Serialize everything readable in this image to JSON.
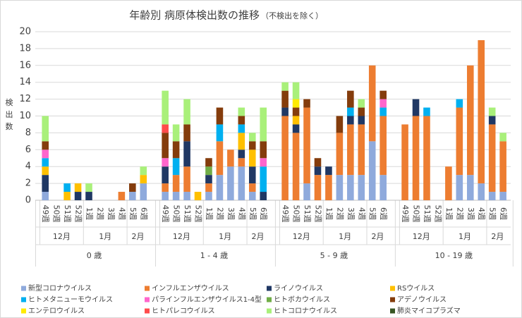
{
  "chart_data": {
    "type": "bar",
    "stacked": true,
    "title": "年齢別 病原体検出数の推移",
    "subtitle": "（不検出を除く）",
    "y_label": "検出数",
    "groups": [
      {
        "label": "0 歳",
        "months": [
          {
            "label": "12月",
            "weeks": [
              "49週",
              "50週",
              "51週",
              "52週"
            ]
          },
          {
            "label": "1月",
            "weeks": [
              "1週",
              "2週",
              "3週",
              "4週"
            ]
          },
          {
            "label": "2月",
            "weeks": [
              "5週",
              "6週"
            ]
          }
        ]
      },
      {
        "label": "1 - 4 歳",
        "months": [
          {
            "label": "12月",
            "weeks": [
              "49週",
              "50週",
              "51週",
              "52週"
            ]
          },
          {
            "label": "1月",
            "weeks": [
              "1週",
              "2週",
              "3週",
              "4週"
            ]
          },
          {
            "label": "2月",
            "weeks": [
              "5週",
              "6週"
            ]
          }
        ]
      },
      {
        "label": "5 - 9 歳",
        "months": [
          {
            "label": "12月",
            "weeks": [
              "49週",
              "50週",
              "51週",
              "52週"
            ]
          },
          {
            "label": "1月",
            "weeks": [
              "1週",
              "2週",
              "3週",
              "4週"
            ]
          },
          {
            "label": "2月",
            "weeks": [
              "5週",
              "6週"
            ]
          }
        ]
      },
      {
        "label": "10 - 19 歳",
        "months": [
          {
            "label": "12月",
            "weeks": [
              "49週",
              "50週",
              "51週",
              "52週"
            ]
          },
          {
            "label": "1月",
            "weeks": [
              "1週",
              "2週",
              "3週",
              "4週"
            ]
          },
          {
            "label": "2月",
            "weeks": [
              "5週",
              "6週"
            ]
          }
        ]
      }
    ],
    "series": [
      {
        "name": "新型コロナウイルス",
        "color": "#8faadc",
        "values": [
          1,
          0,
          0,
          0,
          0,
          0,
          0,
          0,
          1,
          2,
          1,
          1,
          1,
          0,
          1,
          3,
          4,
          4,
          1,
          0,
          0,
          0,
          2,
          0,
          0,
          3,
          3,
          3,
          7,
          3,
          0,
          0,
          0,
          0,
          0,
          3,
          3,
          2,
          1,
          1
        ]
      },
      {
        "name": "インフルエンザウイルス",
        "color": "#ed7d31",
        "values": [
          0,
          0,
          0,
          0,
          0,
          0,
          0,
          1,
          0,
          0,
          1,
          2,
          3,
          0,
          1,
          4,
          2,
          1,
          1,
          0,
          10,
          8,
          9,
          3,
          3,
          5,
          6,
          6,
          9,
          7,
          9,
          10,
          10,
          0,
          4,
          8,
          13,
          17,
          8,
          6
        ]
      },
      {
        "name": "ライノウイルス",
        "color": "#203864",
        "values": [
          2,
          0,
          0,
          1,
          1,
          0,
          0,
          0,
          0,
          0,
          2,
          0,
          3,
          0,
          1,
          0,
          0,
          1,
          2,
          1,
          1,
          1,
          0,
          1,
          1,
          0,
          1,
          1,
          0,
          0,
          0,
          2,
          0,
          0,
          0,
          0,
          0,
          0,
          1,
          0
        ]
      },
      {
        "name": "RSウイルス",
        "color": "#ffc000",
        "values": [
          1,
          0,
          1,
          1,
          0,
          0,
          0,
          0,
          0,
          1,
          0,
          0,
          0,
          1,
          0,
          0,
          0,
          2,
          2,
          0,
          0,
          1,
          0,
          0,
          0,
          0,
          0,
          0,
          0,
          0,
          0,
          0,
          0,
          0,
          0,
          0,
          0,
          0,
          0,
          0
        ]
      },
      {
        "name": "ヒトメタニューモウイルス",
        "color": "#00b0f0",
        "values": [
          1,
          0,
          1,
          0,
          0,
          0,
          0,
          0,
          0,
          0,
          0,
          2,
          0,
          0,
          0,
          2,
          0,
          1,
          0,
          3,
          0,
          0,
          0,
          0,
          0,
          0,
          1,
          0,
          0,
          1,
          0,
          0,
          1,
          0,
          0,
          1,
          0,
          0,
          0,
          0
        ]
      },
      {
        "name": "パラインフルエンザウイルス1-4型",
        "color": "#ff66cc",
        "values": [
          1,
          0,
          0,
          0,
          0,
          0,
          0,
          0,
          0,
          0,
          1,
          0,
          0,
          0,
          0,
          0,
          0,
          0,
          0,
          1,
          0,
          0,
          0,
          0,
          0,
          0,
          0,
          0,
          0,
          1,
          0,
          0,
          0,
          0,
          0,
          0,
          0,
          0,
          0,
          0
        ]
      },
      {
        "name": "ヒトボカウイルス",
        "color": "#70ad47",
        "values": [
          0,
          0,
          0,
          0,
          0,
          0,
          0,
          0,
          0,
          0,
          0,
          0,
          0,
          0,
          1,
          0,
          0,
          0,
          0,
          0,
          0,
          0,
          0,
          0,
          0,
          0,
          0,
          0,
          0,
          0,
          0,
          0,
          0,
          0,
          0,
          0,
          0,
          0,
          0,
          0
        ]
      },
      {
        "name": "アデノウイルス",
        "color": "#843c0c",
        "values": [
          1,
          0,
          0,
          0,
          0,
          0,
          0,
          0,
          1,
          0,
          3,
          2,
          2,
          0,
          1,
          2,
          0,
          1,
          1,
          2,
          2,
          1,
          1,
          1,
          0,
          2,
          2,
          1,
          0,
          1,
          0,
          0,
          0,
          0,
          0,
          0,
          0,
          0,
          0,
          0
        ]
      },
      {
        "name": "エンテロウイルス",
        "color": "#ffeb00",
        "values": [
          0,
          0,
          0,
          0,
          0,
          0,
          0,
          0,
          0,
          0,
          0,
          0,
          0,
          0,
          0,
          0,
          0,
          0,
          0,
          0,
          0,
          1,
          0,
          0,
          0,
          0,
          0,
          0,
          0,
          0,
          0,
          0,
          0,
          0,
          0,
          0,
          0,
          0,
          0,
          0
        ]
      },
      {
        "name": "ヒトパレコウイルス",
        "color": "#ff4b4b",
        "values": [
          0,
          0,
          0,
          0,
          0,
          0,
          0,
          0,
          0,
          0,
          1,
          0,
          0,
          0,
          0,
          0,
          0,
          0,
          0,
          0,
          0,
          0,
          0,
          0,
          0,
          0,
          0,
          0,
          0,
          0,
          0,
          0,
          0,
          0,
          0,
          0,
          0,
          0,
          0,
          0
        ]
      },
      {
        "name": "ヒトコロナウイルス",
        "color": "#a9f07a",
        "values": [
          3,
          0,
          0,
          0,
          1,
          0,
          0,
          0,
          0,
          1,
          4,
          2,
          3,
          0,
          0,
          0,
          0,
          1,
          1,
          4,
          1,
          2,
          0,
          0,
          0,
          0,
          0,
          1,
          0,
          0,
          0,
          0,
          0,
          0,
          0,
          0,
          0,
          0,
          1,
          1
        ]
      },
      {
        "name": "肺炎マイコプラズマ",
        "color": "#375623",
        "values": [
          0,
          0,
          0,
          0,
          0,
          0,
          0,
          0,
          0,
          0,
          0,
          0,
          0,
          0,
          0,
          0,
          0,
          0,
          0,
          0,
          0,
          0,
          0,
          0,
          0,
          0,
          0,
          0,
          0,
          0,
          0,
          0,
          0,
          0,
          0,
          0,
          0,
          0,
          0,
          0
        ]
      }
    ],
    "ylim": [
      0,
      20
    ],
    "yticks": [
      0,
      2,
      4,
      6,
      8,
      10,
      12,
      14,
      16,
      18,
      20
    ],
    "grid": true
  }
}
